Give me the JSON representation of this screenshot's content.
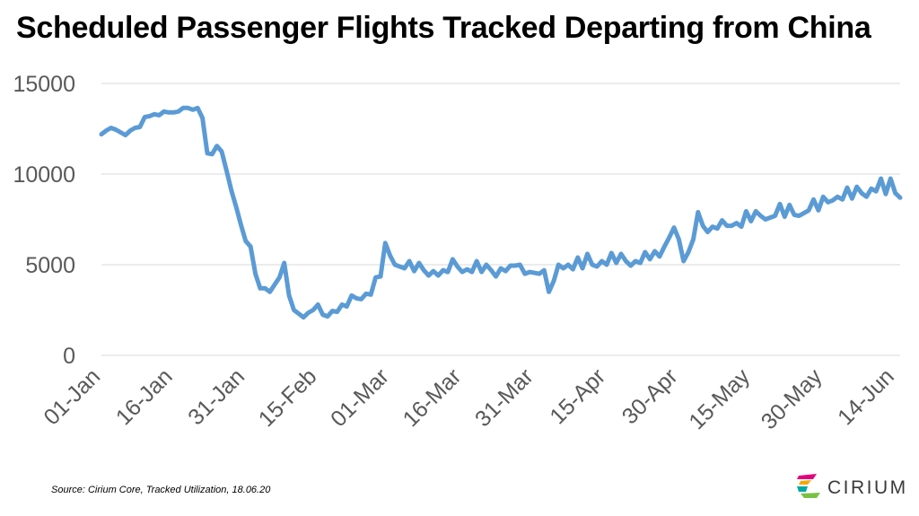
{
  "title": "Scheduled Passenger Flights Tracked Departing from China",
  "source": "Source: Cirium Core, Tracked Utilization, 18.06.20",
  "brand": {
    "name": "CIRIUM",
    "colors": [
      "#e5007e",
      "#f5a800",
      "#00a9a5",
      "#7ac143"
    ]
  },
  "chart_data": {
    "type": "line",
    "title": "Scheduled Passenger Flights Tracked Departing from China",
    "xlabel": "",
    "ylabel": "",
    "ylim": [
      0,
      15000
    ],
    "yticks": [
      "0",
      "5000",
      "10000",
      "15000"
    ],
    "xticks": [
      "01-Jan",
      "16-Jan",
      "31-Jan",
      "15-Feb",
      "01-Mar",
      "16-Mar",
      "31-Mar",
      "15-Apr",
      "30-Apr",
      "15-May",
      "30-May",
      "14-Jun"
    ],
    "grid": true,
    "legend": "none",
    "color": "#5b9bd5",
    "series": [
      {
        "x_start": "01-Jan",
        "x_step_days": 1,
        "values": [
          12200,
          12400,
          12550,
          12450,
          12300,
          12150,
          12400,
          12550,
          12600,
          13150,
          13200,
          13300,
          13250,
          13450,
          13400,
          13400,
          13450,
          13650,
          13650,
          13550,
          13650,
          13100,
          11150,
          11100,
          11550,
          11250,
          10200,
          9100,
          8200,
          7200,
          6300,
          6000,
          4500,
          3700,
          3700,
          3500,
          3900,
          4300,
          5100,
          3300,
          2500,
          2300,
          2100,
          2350,
          2500,
          2800,
          2250,
          2150,
          2450,
          2400,
          2800,
          2700,
          3300,
          3150,
          3100,
          3400,
          3350,
          4300,
          4350,
          6200,
          5500,
          5000,
          4900,
          4800,
          5200,
          4650,
          5100,
          4700,
          4400,
          4650,
          4400,
          4700,
          4600,
          5300,
          4900,
          4600,
          4750,
          4600,
          5200,
          4600,
          5000,
          4700,
          4350,
          4800,
          4650,
          4950,
          4950,
          5000,
          4500,
          4600,
          4550,
          4500,
          4700,
          3500,
          4100,
          5000,
          4800,
          5000,
          4750,
          5400,
          4800,
          5600,
          5000,
          4900,
          5200,
          5000,
          5650,
          5100,
          5600,
          5200,
          4950,
          5200,
          5100,
          5700,
          5300,
          5750,
          5450,
          6000,
          6500,
          7050,
          6400,
          5200,
          5700,
          6400,
          7900,
          7150,
          6800,
          7100,
          7000,
          7450,
          7150,
          7150,
          7300,
          7100,
          7950,
          7400,
          7950,
          7700,
          7500,
          7600,
          7700,
          8350,
          7650,
          8300,
          7750,
          7700,
          7850,
          8000,
          8600,
          8000,
          8750,
          8450,
          8550,
          8750,
          8600,
          9250,
          8650,
          9300,
          8950,
          8750,
          9200,
          9050,
          9750,
          8900,
          9750,
          8950,
          8700
        ]
      }
    ]
  }
}
